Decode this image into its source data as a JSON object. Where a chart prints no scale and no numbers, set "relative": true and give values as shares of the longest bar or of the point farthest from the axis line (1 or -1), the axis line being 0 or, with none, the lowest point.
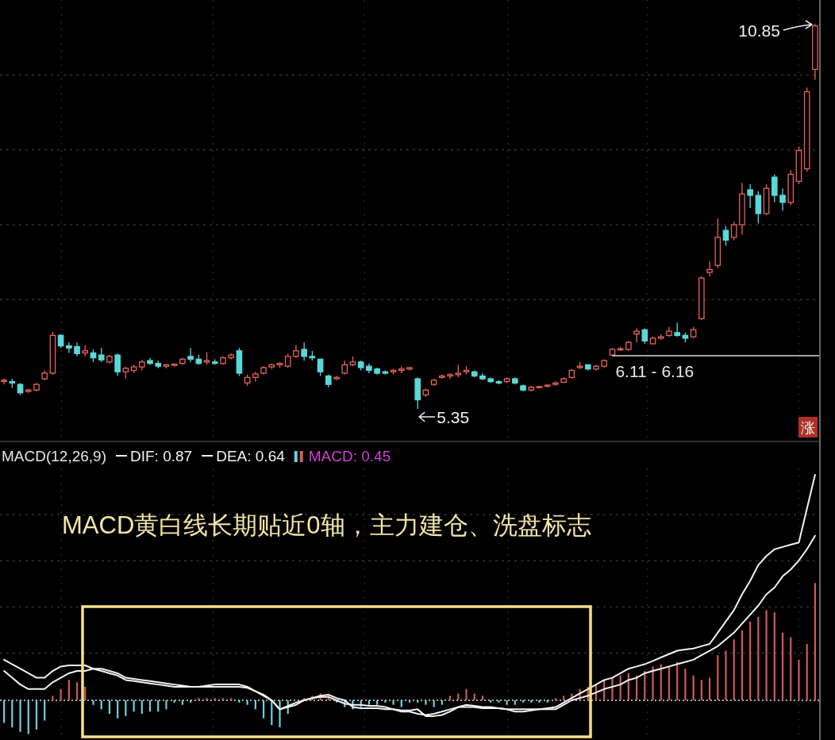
{
  "chart_data": [
    {
      "type": "candlestick",
      "grid": true,
      "categories": [
        null,
        null,
        null,
        null,
        null,
        null,
        null,
        null,
        null,
        null,
        null,
        null,
        null,
        null,
        null,
        null,
        null,
        null,
        null,
        null,
        null,
        null,
        null,
        null,
        null,
        null,
        null,
        null,
        null,
        null,
        null,
        null,
        null,
        null,
        null,
        null,
        null,
        null,
        null,
        null,
        null,
        null,
        null,
        null,
        null,
        null,
        null,
        null,
        null,
        null,
        null,
        null,
        null,
        null,
        null,
        null,
        null,
        null,
        null,
        null,
        null,
        null,
        null,
        null,
        null,
        null,
        null,
        null,
        null,
        null,
        null,
        null,
        null,
        null,
        null,
        null,
        null,
        null,
        null,
        null,
        null,
        null,
        null,
        null,
        null,
        null,
        null,
        null,
        null,
        null,
        null,
        null,
        null,
        null,
        null,
        null,
        null,
        null,
        null,
        null,
        null
      ],
      "ohlc": [
        [
          5.75,
          5.78,
          5.7,
          5.76
        ],
        [
          5.74,
          5.78,
          5.65,
          5.72
        ],
        [
          5.7,
          5.72,
          5.55,
          5.58
        ],
        [
          5.6,
          5.64,
          5.58,
          5.62
        ],
        [
          5.62,
          5.72,
          5.6,
          5.7
        ],
        [
          5.78,
          5.9,
          5.76,
          5.86
        ],
        [
          5.86,
          6.45,
          5.84,
          6.4
        ],
        [
          6.4,
          6.42,
          6.22,
          6.25
        ],
        [
          6.25,
          6.3,
          6.15,
          6.22
        ],
        [
          6.24,
          6.3,
          6.1,
          6.14
        ],
        [
          6.15,
          6.26,
          6.1,
          6.18
        ],
        [
          6.15,
          6.2,
          6.02,
          6.08
        ],
        [
          6.12,
          6.22,
          6.02,
          6.05
        ],
        [
          6.02,
          6.12,
          6.0,
          6.1
        ],
        [
          6.12,
          6.14,
          5.82,
          5.88
        ],
        [
          5.88,
          5.95,
          5.78,
          5.93
        ],
        [
          5.9,
          5.98,
          5.86,
          5.95
        ],
        [
          5.95,
          6.05,
          5.9,
          6.02
        ],
        [
          6.04,
          6.08,
          5.98,
          6.0
        ],
        [
          6.0,
          6.04,
          5.93,
          5.96
        ],
        [
          5.96,
          5.99,
          5.93,
          5.98
        ],
        [
          5.98,
          6.0,
          5.95,
          5.99
        ],
        [
          6.0,
          6.08,
          5.98,
          6.06
        ],
        [
          6.1,
          6.22,
          6.02,
          6.06
        ],
        [
          6.06,
          6.12,
          5.98,
          6.0
        ],
        [
          6.02,
          6.16,
          5.98,
          6.04
        ],
        [
          6.02,
          6.06,
          5.98,
          6.0
        ],
        [
          6.0,
          6.1,
          5.98,
          6.08
        ],
        [
          6.08,
          6.14,
          6.06,
          6.12
        ],
        [
          6.18,
          6.22,
          5.82,
          5.86
        ],
        [
          5.72,
          5.84,
          5.68,
          5.8
        ],
        [
          5.8,
          5.88,
          5.74,
          5.85
        ],
        [
          5.86,
          5.96,
          5.84,
          5.94
        ],
        [
          5.95,
          6.0,
          5.92,
          5.98
        ],
        [
          5.98,
          6.02,
          5.94,
          6.0
        ],
        [
          5.96,
          6.14,
          5.94,
          6.1
        ],
        [
          6.1,
          6.26,
          6.08,
          6.18
        ],
        [
          6.2,
          6.3,
          6.04,
          6.1
        ],
        [
          6.1,
          6.18,
          6.04,
          6.08
        ],
        [
          6.06,
          6.06,
          5.82,
          5.88
        ],
        [
          5.82,
          5.84,
          5.66,
          5.7
        ],
        [
          5.78,
          5.82,
          5.76,
          5.8
        ],
        [
          5.86,
          6.04,
          5.84,
          5.98
        ],
        [
          5.98,
          6.1,
          5.96,
          6.02
        ],
        [
          6.02,
          6.04,
          5.9,
          5.94
        ],
        [
          5.96,
          6.0,
          5.86,
          5.9
        ],
        [
          5.92,
          5.94,
          5.84,
          5.86
        ],
        [
          5.88,
          5.9,
          5.84,
          5.86
        ],
        [
          5.88,
          5.92,
          5.84,
          5.9
        ],
        [
          5.9,
          5.96,
          5.86,
          5.92
        ],
        [
          5.92,
          5.95,
          5.9,
          5.94
        ],
        [
          5.78,
          5.8,
          5.35,
          5.48
        ],
        [
          5.55,
          5.64,
          5.52,
          5.62
        ],
        [
          5.7,
          5.78,
          5.68,
          5.76
        ],
        [
          5.8,
          5.84,
          5.78,
          5.82
        ],
        [
          5.82,
          5.86,
          5.78,
          5.84
        ],
        [
          5.84,
          5.98,
          5.8,
          5.86
        ],
        [
          5.88,
          5.96,
          5.84,
          5.9
        ],
        [
          5.88,
          5.9,
          5.8,
          5.82
        ],
        [
          5.82,
          5.86,
          5.76,
          5.78
        ],
        [
          5.78,
          5.8,
          5.72,
          5.74
        ],
        [
          5.74,
          5.76,
          5.7,
          5.72
        ],
        [
          5.74,
          5.8,
          5.72,
          5.78
        ],
        [
          5.78,
          5.8,
          5.7,
          5.72
        ],
        [
          5.68,
          5.7,
          5.6,
          5.62
        ],
        [
          5.62,
          5.68,
          5.6,
          5.66
        ],
        [
          5.66,
          5.68,
          5.64,
          5.67
        ],
        [
          5.68,
          5.7,
          5.66,
          5.69
        ],
        [
          5.7,
          5.74,
          5.68,
          5.72
        ],
        [
          5.73,
          5.8,
          5.72,
          5.78
        ],
        [
          5.8,
          5.92,
          5.78,
          5.9
        ],
        [
          5.94,
          6.02,
          5.92,
          5.96
        ],
        [
          5.98,
          5.98,
          5.9,
          5.92
        ],
        [
          5.92,
          5.98,
          5.9,
          5.96
        ],
        [
          5.96,
          6.06,
          5.94,
          6.04
        ],
        [
          6.12,
          6.22,
          6.1,
          6.2
        ],
        [
          6.2,
          6.24,
          6.18,
          6.21
        ],
        [
          6.2,
          6.32,
          6.18,
          6.3
        ],
        [
          6.42,
          6.5,
          6.3,
          6.46
        ],
        [
          6.48,
          6.5,
          6.28,
          6.32
        ],
        [
          6.28,
          6.38,
          6.28,
          6.36
        ],
        [
          6.36,
          6.42,
          6.34,
          6.38
        ],
        [
          6.4,
          6.52,
          6.38,
          6.46
        ],
        [
          6.44,
          6.58,
          6.38,
          6.4
        ],
        [
          6.4,
          6.44,
          6.3,
          6.36
        ],
        [
          6.38,
          6.52,
          6.36,
          6.48
        ],
        [
          6.64,
          7.24,
          6.62,
          7.22
        ],
        [
          7.3,
          7.46,
          7.24,
          7.34
        ],
        [
          7.4,
          8.07,
          7.36,
          7.8
        ],
        [
          7.9,
          7.96,
          7.68,
          7.76
        ],
        [
          7.8,
          8.02,
          7.76,
          7.98
        ],
        [
          7.98,
          8.58,
          7.84,
          8.42
        ],
        [
          8.48,
          8.56,
          8.22,
          8.4
        ],
        [
          8.4,
          8.46,
          8.0,
          8.14
        ],
        [
          8.14,
          8.56,
          8.12,
          8.5
        ],
        [
          8.66,
          8.7,
          8.3,
          8.4
        ],
        [
          8.4,
          8.5,
          8.18,
          8.3
        ],
        [
          8.3,
          8.76,
          8.26,
          8.7
        ],
        [
          8.6,
          9.1,
          8.56,
          9.04
        ],
        [
          8.78,
          9.94,
          8.74,
          9.88
        ],
        [
          10.2,
          10.85,
          10.05,
          10.82
        ]
      ],
      "colors": [
        "#e8625a",
        "#5ad8d8",
        "#5ad8d8",
        "#e8625a",
        "#e8625a",
        "#e8625a",
        "#e8625a",
        "#5ad8d8",
        "#5ad8d8",
        "#5ad8d8",
        "#e8625a",
        "#5ad8d8",
        "#5ad8d8",
        "#e8625a",
        "#5ad8d8",
        "#e8625a",
        "#e8625a",
        "#e8625a",
        "#5ad8d8",
        "#5ad8d8",
        "#e8625a",
        "#e8625a",
        "#e8625a",
        "#5ad8d8",
        "#5ad8d8",
        "#e8625a",
        "#5ad8d8",
        "#e8625a",
        "#e8625a",
        "#5ad8d8",
        "#e8625a",
        "#e8625a",
        "#e8625a",
        "#e8625a",
        "#e8625a",
        "#e8625a",
        "#e8625a",
        "#5ad8d8",
        "#5ad8d8",
        "#5ad8d8",
        "#5ad8d8",
        "#e8625a",
        "#e8625a",
        "#e8625a",
        "#5ad8d8",
        "#5ad8d8",
        "#5ad8d8",
        "#5ad8d8",
        "#e8625a",
        "#e8625a",
        "#e8625a",
        "#5ad8d8",
        "#e8625a",
        "#e8625a",
        "#e8625a",
        "#e8625a",
        "#e8625a",
        "#e8625a",
        "#5ad8d8",
        "#5ad8d8",
        "#5ad8d8",
        "#5ad8d8",
        "#e8625a",
        "#5ad8d8",
        "#5ad8d8",
        "#e8625a",
        "#e8625a",
        "#e8625a",
        "#e8625a",
        "#e8625a",
        "#e8625a",
        "#e8625a",
        "#5ad8d8",
        "#e8625a",
        "#e8625a",
        "#e8625a",
        "#e8625a",
        "#e8625a",
        "#e8625a",
        "#5ad8d8",
        "#e8625a",
        "#e8625a",
        "#e8625a",
        "#5ad8d8",
        "#5ad8d8",
        "#e8625a",
        "#e8625a",
        "#e8625a",
        "#e8625a",
        "#5ad8d8",
        "#e8625a",
        "#e8625a",
        "#5ad8d8",
        "#5ad8d8",
        "#e8625a",
        "#5ad8d8",
        "#5ad8d8",
        "#e8625a",
        "#e8625a",
        "#e8625a",
        "#e8625a"
      ],
      "ref_lines": [
        {
          "axis": "y",
          "value": 6.11,
          "label": "6.11 - 6.16",
          "color": "#d8d8d8"
        }
      ],
      "annotations": [
        "10.85",
        "5.35",
        "涨"
      ]
    },
    {
      "type": "bar",
      "relative": true,
      "grid": true,
      "legend": "top left",
      "ref_lines": [
        {
          "axis": "y",
          "value": 0,
          "color": "#e0e0e0",
          "line_style": "dotted"
        }
      ],
      "title": "MACD(12,26,9)",
      "annotations": [
        "MACD黄白线长期贴近0轴，主力建仓、洗盘标志"
      ],
      "categories": [
        null,
        null,
        null,
        null,
        null,
        null,
        null,
        null,
        null,
        null,
        null,
        null,
        null,
        null,
        null,
        null,
        null,
        null,
        null,
        null,
        null,
        null,
        null,
        null,
        null,
        null,
        null,
        null,
        null,
        null,
        null,
        null,
        null,
        null,
        null,
        null,
        null,
        null,
        null,
        null,
        null,
        null,
        null,
        null,
        null,
        null,
        null,
        null,
        null,
        null,
        null,
        null,
        null,
        null,
        null,
        null,
        null,
        null,
        null,
        null,
        null,
        null,
        null,
        null,
        null,
        null,
        null,
        null,
        null,
        null,
        null,
        null,
        null,
        null,
        null,
        null,
        null,
        null,
        null,
        null,
        null,
        null,
        null,
        null,
        null,
        null,
        null,
        null,
        null,
        null,
        null,
        null,
        null,
        null,
        null,
        null,
        null,
        null,
        null,
        null,
        null
      ],
      "series": [
        {
          "name": "DIF: 0.87",
          "type": "line",
          "color": "#f2f2f2",
          "values": [
            0.18,
            0.16,
            0.14,
            0.12,
            0.1,
            0.1,
            0.13,
            0.15,
            0.155,
            0.155,
            0.155,
            0.14,
            0.13,
            0.12,
            0.11,
            0.09,
            0.085,
            0.08,
            0.075,
            0.07,
            0.065,
            0.06,
            0.06,
            0.06,
            0.06,
            0.065,
            0.07,
            0.07,
            0.07,
            0.07,
            0.06,
            0.04,
            0.02,
            0.0,
            -0.04,
            -0.03,
            -0.02,
            0.0,
            0.01,
            0.02,
            0.025,
            0.01,
            0.0,
            -0.03,
            -0.035,
            -0.035,
            -0.035,
            -0.04,
            -0.04,
            -0.045,
            -0.045,
            -0.04,
            -0.07,
            -0.07,
            -0.065,
            -0.05,
            -0.03,
            -0.02,
            -0.025,
            -0.03,
            -0.03,
            -0.035,
            -0.04,
            -0.05,
            -0.05,
            -0.045,
            -0.04,
            -0.035,
            -0.03,
            -0.01,
            0.01,
            0.03,
            0.05,
            0.07,
            0.09,
            0.1,
            0.12,
            0.14,
            0.15,
            0.16,
            0.175,
            0.19,
            0.205,
            0.22,
            0.225,
            0.23,
            0.24,
            0.25,
            0.3,
            0.35,
            0.4,
            0.47,
            0.53,
            0.6,
            0.64,
            0.67,
            0.68,
            0.69,
            0.7,
            0.85,
            1.0
          ]
        },
        {
          "name": "DEA: 0.64",
          "type": "line",
          "color": "#f2f2f2",
          "values": [
            0.13,
            0.1,
            0.07,
            0.05,
            0.05,
            0.05,
            0.08,
            0.1,
            0.12,
            0.13,
            0.13,
            0.14,
            0.14,
            0.13,
            0.12,
            0.1,
            0.095,
            0.09,
            0.085,
            0.08,
            0.075,
            0.07,
            0.065,
            0.06,
            0.06,
            0.06,
            0.06,
            0.06,
            0.06,
            0.06,
            0.055,
            0.04,
            0.025,
            0.0,
            -0.04,
            -0.025,
            -0.01,
            0.0,
            0.01,
            0.015,
            0.015,
            0.0,
            -0.015,
            -0.02,
            -0.02,
            -0.025,
            -0.025,
            -0.03,
            -0.04,
            -0.05,
            -0.05,
            -0.06,
            -0.065,
            -0.06,
            -0.05,
            -0.04,
            -0.03,
            -0.03,
            -0.03,
            -0.035,
            -0.035,
            -0.035,
            -0.04,
            -0.04,
            -0.04,
            -0.04,
            -0.04,
            -0.04,
            -0.04,
            -0.02,
            0.0,
            0.01,
            0.02,
            0.035,
            0.05,
            0.06,
            0.07,
            0.09,
            0.1,
            0.12,
            0.13,
            0.14,
            0.15,
            0.16,
            0.17,
            0.18,
            0.2,
            0.22,
            0.24,
            0.27,
            0.3,
            0.34,
            0.38,
            0.42,
            0.47,
            0.5,
            0.55,
            0.58,
            0.62,
            0.67,
            0.73
          ]
        },
        {
          "name": "MACD: 0.45",
          "type": "bar",
          "color": "#d040d0",
          "values": [
            -0.1,
            -0.12,
            -0.14,
            -0.15,
            -0.13,
            -0.09,
            0.02,
            0.05,
            0.09,
            0.08,
            0.06,
            -0.02,
            -0.04,
            -0.06,
            -0.08,
            -0.07,
            -0.05,
            -0.06,
            -0.05,
            -0.05,
            -0.04,
            -0.01,
            -0.02,
            -0.01,
            0.01,
            0.01,
            0.01,
            0.01,
            0.01,
            -0.01,
            -0.02,
            -0.04,
            -0.08,
            -0.11,
            -0.12,
            -0.06,
            null,
            0.01,
            0.02,
            0.03,
            0.02,
            -0.01,
            -0.03,
            -0.04,
            -0.03,
            -0.02,
            -0.02,
            -0.01,
            -0.02,
            -0.03,
            -0.01,
            -0.01,
            -0.02,
            -0.03,
            -0.02,
            0.02,
            0.03,
            0.05,
            0.03,
            0.02,
            -0.01,
            -0.01,
            -0.02,
            -0.02,
            -0.01,
            -0.01,
            -0.01,
            -0.01,
            0.01,
            0.02,
            0.03,
            0.05,
            0.06,
            0.07,
            0.09,
            0.1,
            0.11,
            0.12,
            0.11,
            0.13,
            0.15,
            0.16,
            0.15,
            0.17,
            0.14,
            0.11,
            0.09,
            0.1,
            0.2,
            0.22,
            0.27,
            0.31,
            0.35,
            0.37,
            0.4,
            0.39,
            0.3,
            0.28,
            0.18,
            0.25,
            0.52
          ],
          "colors": [
            "#6ccfe0",
            "#6ccfe0",
            "#6ccfe0",
            "#6ccfe0",
            "#6ccfe0",
            "#6ccfe0",
            "#d05a5a",
            "#d05a5a",
            "#d05a5a",
            "#d05a5a",
            "#d05a5a",
            "#6ccfe0",
            "#6ccfe0",
            "#6ccfe0",
            "#6ccfe0",
            "#6ccfe0",
            "#6ccfe0",
            "#6ccfe0",
            "#6ccfe0",
            "#6ccfe0",
            "#6ccfe0",
            "#6ccfe0",
            "#6ccfe0",
            "#6ccfe0",
            "#d05a5a",
            "#d05a5a",
            "#d05a5a",
            "#d05a5a",
            "#d05a5a",
            "#6ccfe0",
            "#6ccfe0",
            "#6ccfe0",
            "#6ccfe0",
            "#6ccfe0",
            "#6ccfe0",
            "#6ccfe0",
            "#6ccfe0",
            "#d05a5a",
            "#d05a5a",
            "#d05a5a",
            "#d05a5a",
            "#6ccfe0",
            "#6ccfe0",
            "#6ccfe0",
            "#6ccfe0",
            "#6ccfe0",
            "#6ccfe0",
            "#6ccfe0",
            "#6ccfe0",
            "#6ccfe0",
            "#6ccfe0",
            "#6ccfe0",
            "#6ccfe0",
            "#6ccfe0",
            "#6ccfe0",
            "#d05a5a",
            "#d05a5a",
            "#d05a5a",
            "#d05a5a",
            "#d05a5a",
            "#6ccfe0",
            "#6ccfe0",
            "#6ccfe0",
            "#6ccfe0",
            "#6ccfe0",
            "#6ccfe0",
            "#6ccfe0",
            "#6ccfe0",
            "#d05a5a",
            "#d05a5a",
            "#d05a5a",
            "#d05a5a",
            "#d05a5a",
            "#d05a5a",
            "#d05a5a",
            "#d05a5a",
            "#d05a5a",
            "#d05a5a",
            "#d05a5a",
            "#d05a5a",
            "#d05a5a",
            "#d05a5a",
            "#d05a5a",
            "#d05a5a",
            "#d05a5a",
            "#d05a5a",
            "#d05a5a",
            "#d05a5a",
            "#d05a5a",
            "#d05a5a",
            "#d05a5a",
            "#d05a5a",
            "#d05a5a",
            "#d05a5a",
            "#d05a5a",
            "#d05a5a",
            "#d05a5a",
            "#d05a5a",
            "#d05a5a",
            "#d05a5a",
            "#d05a5a"
          ]
        }
      ]
    }
  ]
}
